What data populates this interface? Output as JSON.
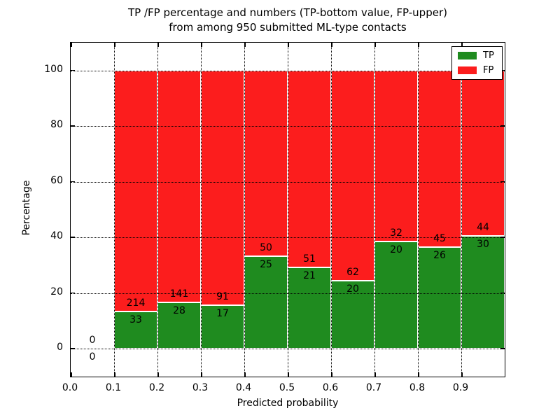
{
  "chart_data": {
    "type": "bar",
    "subtype": "stacked-percentage-histogram",
    "title_lines": [
      "TP /FP percentage and numbers (TP-bottom value, FP-upper)",
      "from among 950 submitted ML-type contacts"
    ],
    "xlabel": "Predicted probability",
    "ylabel": "Percentage",
    "total_contacts": 950,
    "xlim": [
      0.0,
      1.0
    ],
    "ylim": [
      -10,
      110
    ],
    "x_tick_values": [
      0.0,
      0.1,
      0.2,
      0.3,
      0.4,
      0.5,
      0.6,
      0.7,
      0.8,
      0.9
    ],
    "x_tick_labels": [
      "0.0",
      "0.1",
      "0.2",
      "0.3",
      "0.4",
      "0.5",
      "0.6",
      "0.7",
      "0.8",
      "0.9"
    ],
    "y_ticks": [
      0,
      20,
      40,
      60,
      80,
      100
    ],
    "grid": true,
    "grid_style": "dotted",
    "legend": {
      "position": "upper right",
      "entries": [
        {
          "label": "TP",
          "color": "#1f8b1f"
        },
        {
          "label": "FP",
          "color": "#fc1d1d"
        }
      ]
    },
    "bins": [
      {
        "x_start": 0.0,
        "x_end": 0.1,
        "tp": 0,
        "fp": 0
      },
      {
        "x_start": 0.1,
        "x_end": 0.2,
        "tp": 33,
        "fp": 214
      },
      {
        "x_start": 0.2,
        "x_end": 0.3,
        "tp": 28,
        "fp": 141
      },
      {
        "x_start": 0.3,
        "x_end": 0.4,
        "tp": 17,
        "fp": 91
      },
      {
        "x_start": 0.4,
        "x_end": 0.5,
        "tp": 25,
        "fp": 50
      },
      {
        "x_start": 0.5,
        "x_end": 0.6,
        "tp": 21,
        "fp": 51
      },
      {
        "x_start": 0.6,
        "x_end": 0.7,
        "tp": 20,
        "fp": 62
      },
      {
        "x_start": 0.7,
        "x_end": 0.8,
        "tp": 20,
        "fp": 32
      },
      {
        "x_start": 0.8,
        "x_end": 0.9,
        "tp": 26,
        "fp": 45
      },
      {
        "x_start": 0.9,
        "x_end": 1.0,
        "tp": 30,
        "fp": 44
      }
    ],
    "colors": {
      "tp": "#1f8b1f",
      "fp": "#fc1d1d",
      "grid": "#000000",
      "bar_edge": "#ffffff",
      "background": "#ffffff",
      "text": "#000000"
    }
  }
}
